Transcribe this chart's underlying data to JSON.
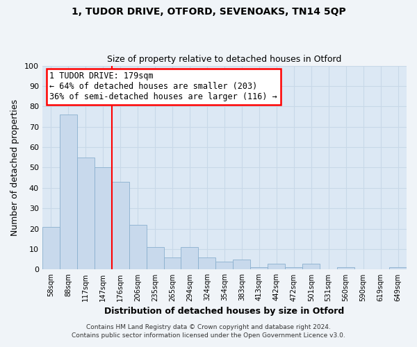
{
  "title": "1, TUDOR DRIVE, OTFORD, SEVENOAKS, TN14 5QP",
  "subtitle": "Size of property relative to detached houses in Otford",
  "xlabel": "Distribution of detached houses by size in Otford",
  "ylabel": "Number of detached properties",
  "footer_line1": "Contains HM Land Registry data © Crown copyright and database right 2024.",
  "footer_line2": "Contains public sector information licensed under the Open Government Licence v3.0.",
  "bar_labels": [
    "58sqm",
    "88sqm",
    "117sqm",
    "147sqm",
    "176sqm",
    "206sqm",
    "235sqm",
    "265sqm",
    "294sqm",
    "324sqm",
    "354sqm",
    "383sqm",
    "413sqm",
    "442sqm",
    "472sqm",
    "501sqm",
    "531sqm",
    "560sqm",
    "590sqm",
    "619sqm",
    "649sqm"
  ],
  "bar_values": [
    21,
    76,
    55,
    50,
    43,
    22,
    11,
    6,
    11,
    6,
    4,
    5,
    1,
    3,
    1,
    3,
    0,
    1,
    0,
    0,
    1
  ],
  "bar_color": "#c8d9ec",
  "bar_edgecolor": "#8ab0ce",
  "vline_index": 3.5,
  "vline_color": "red",
  "annotation_text": "1 TUDOR DRIVE: 179sqm\n← 64% of detached houses are smaller (203)\n36% of semi-detached houses are larger (116) →",
  "annotation_box_edgecolor": "red",
  "annotation_box_facecolor": "white",
  "ylim": [
    0,
    100
  ],
  "yticks": [
    0,
    10,
    20,
    30,
    40,
    50,
    60,
    70,
    80,
    90,
    100
  ],
  "grid_color": "#c8d8e8",
  "background_color": "#dce8f4",
  "plot_bg_color": "#dce8f4",
  "fig_bg_color": "#f0f4f8"
}
